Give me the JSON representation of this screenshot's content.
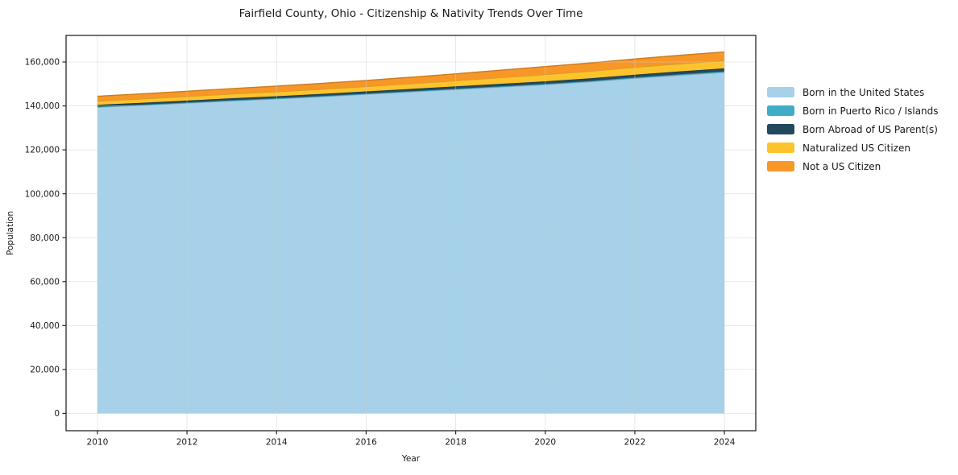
{
  "chart_data": {
    "type": "area",
    "stacked": true,
    "title": "Fairfield County, Ohio - Citizenship & Nativity Trends Over Time",
    "xlabel": "Year",
    "ylabel": "Population",
    "x": [
      2010,
      2011,
      2012,
      2013,
      2014,
      2015,
      2016,
      2017,
      2018,
      2019,
      2020,
      2021,
      2022,
      2023,
      2024
    ],
    "series": [
      {
        "name": "Born in the United States",
        "color": "#a6d1e8",
        "values": [
          139400,
          140300,
          141300,
          142300,
          143200,
          144200,
          145300,
          146400,
          147500,
          148600,
          149700,
          151000,
          152600,
          154000,
          155300
        ]
      },
      {
        "name": "Born in Puerto Rico / Islands",
        "color": "#3fadc5",
        "values": [
          250,
          260,
          270,
          280,
          290,
          300,
          310,
          320,
          330,
          340,
          350,
          360,
          380,
          400,
          420
        ]
      },
      {
        "name": "Born Abroad of US Parent(s)",
        "color": "#24485c",
        "values": [
          850,
          870,
          890,
          910,
          940,
          970,
          1000,
          1040,
          1080,
          1120,
          1160,
          1210,
          1270,
          1330,
          1400
        ]
      },
      {
        "name": "Naturalized US Citizen",
        "color": "#fcc32d",
        "values": [
          1700,
          1780,
          1860,
          1950,
          2040,
          2140,
          2250,
          2400,
          2600,
          2850,
          3100,
          3250,
          3350,
          3430,
          3500
        ]
      },
      {
        "name": "Not a US Citizen",
        "color": "#f79727",
        "values": [
          2200,
          2280,
          2360,
          2450,
          2550,
          2650,
          2750,
          2900,
          3100,
          3350,
          3600,
          3720,
          3800,
          3870,
          3950
        ]
      }
    ],
    "xticks": [
      2010,
      2012,
      2014,
      2016,
      2018,
      2020,
      2022,
      2024
    ],
    "yticks": [
      0,
      20000,
      40000,
      60000,
      80000,
      100000,
      120000,
      140000,
      160000
    ],
    "xlim": [
      2009.3,
      2024.7
    ],
    "ylim": [
      -7900,
      172100
    ],
    "grid": true,
    "legend_position": "right-outside",
    "style": {
      "grid_color": "#cccccc",
      "spine_color": "#262626",
      "text_color": "#191919",
      "background": "#ffffff"
    }
  }
}
